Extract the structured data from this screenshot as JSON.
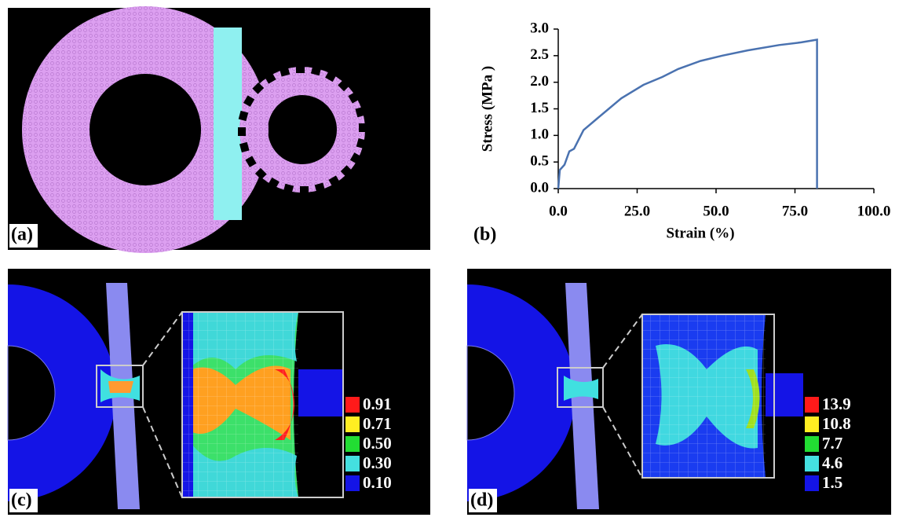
{
  "panels": [
    "(a)",
    "(b)",
    "(c)",
    "(d)"
  ],
  "chart_data": {
    "type": "line",
    "x_label": "Strain (%)",
    "y_label": "Stress (MPa )",
    "x": [
      0,
      0.5,
      2,
      3.5,
      5,
      8,
      12,
      16,
      20,
      27,
      33,
      38,
      45,
      52,
      60,
      70,
      77,
      82,
      82
    ],
    "values": [
      0,
      0.35,
      0.45,
      0.7,
      0.75,
      1.1,
      1.3,
      1.5,
      1.7,
      1.95,
      2.1,
      2.25,
      2.4,
      2.5,
      2.6,
      2.7,
      2.75,
      2.8,
      0
    ],
    "color": "#4a72b0",
    "xlim": [
      0,
      100
    ],
    "ylim": [
      0,
      3
    ],
    "xticks": [
      {
        "value": 0,
        "label": "0.0"
      },
      {
        "value": 25,
        "label": "25.0"
      },
      {
        "value": 50,
        "label": "50.0"
      },
      {
        "value": 75,
        "label": "75.0"
      },
      {
        "value": 100,
        "label": "100.0"
      }
    ],
    "yticks": [
      {
        "value": 0,
        "label": "0.0"
      },
      {
        "value": 0.5,
        "label": "0.5"
      },
      {
        "value": 1,
        "label": "1.0"
      },
      {
        "value": 1.5,
        "label": "1.5"
      },
      {
        "value": 2,
        "label": "2.0"
      },
      {
        "value": 2.5,
        "label": "2.5"
      },
      {
        "value": 3,
        "label": "3.0"
      }
    ]
  },
  "legends": {
    "c": [
      "0.91",
      "0.71",
      "0.50",
      "0.30",
      "0.10"
    ],
    "d": [
      "13.9",
      "10.8",
      "7.7",
      "4.6",
      "1.5"
    ]
  }
}
